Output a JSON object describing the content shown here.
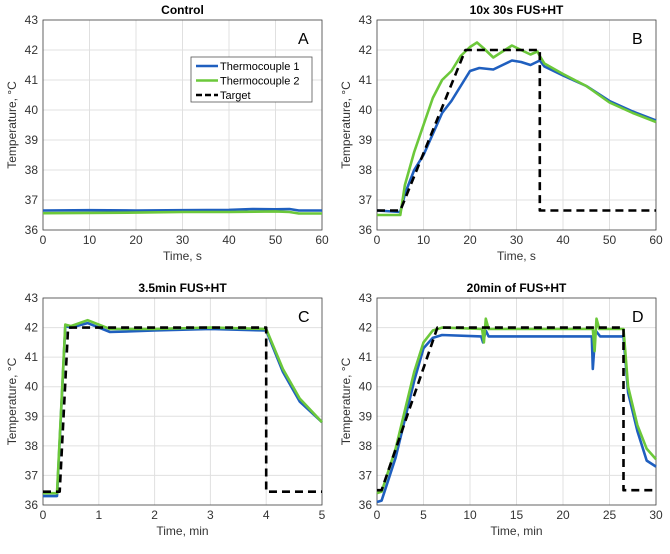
{
  "colors": {
    "tc1": "#1f5fbf",
    "tc2": "#6cc83a",
    "target": "#000000",
    "grid": "#e0e0e0"
  },
  "legend": {
    "placement": "top-right of panel A",
    "entries": [
      "Thermocouple 1",
      "Thermocouple 2",
      "Target"
    ]
  },
  "chart_data": [
    {
      "type": "line",
      "panel": "A",
      "title": "Control",
      "xlabel": "Time, s",
      "ylabel": "Temperature, °C",
      "xlim": [
        0,
        60
      ],
      "ylim": [
        36,
        43
      ],
      "xticks": [
        0,
        10,
        20,
        30,
        40,
        50,
        60
      ],
      "yticks": [
        36,
        37,
        38,
        39,
        40,
        41,
        42,
        43
      ],
      "grid": true,
      "series": [
        {
          "name": "Thermocouple 1",
          "x": [
            0,
            10,
            20,
            30,
            40,
            45,
            50,
            53,
            55,
            60
          ],
          "y": [
            36.65,
            36.66,
            36.65,
            36.66,
            36.67,
            36.7,
            36.69,
            36.7,
            36.65,
            36.65
          ]
        },
        {
          "name": "Thermocouple 2",
          "x": [
            0,
            10,
            20,
            30,
            40,
            50,
            53,
            55,
            60
          ],
          "y": [
            36.56,
            36.57,
            36.58,
            36.6,
            36.6,
            36.62,
            36.6,
            36.55,
            36.55
          ]
        }
      ]
    },
    {
      "type": "line",
      "panel": "B",
      "title": "10x 30s FUS+HT",
      "xlabel": "Time, s",
      "ylabel": "Temperature, °C",
      "xlim": [
        0,
        60
      ],
      "ylim": [
        36,
        43
      ],
      "xticks": [
        0,
        10,
        20,
        30,
        40,
        50,
        60
      ],
      "yticks": [
        36,
        37,
        38,
        39,
        40,
        41,
        42,
        43
      ],
      "grid": true,
      "series": [
        {
          "name": "Thermocouple 1",
          "x": [
            0,
            5,
            6,
            8,
            10,
            12,
            14,
            16,
            18,
            20,
            22,
            25,
            27,
            29,
            31,
            33,
            35,
            36,
            40,
            45,
            50,
            55,
            60
          ],
          "y": [
            36.65,
            36.6,
            37.2,
            38,
            38.5,
            39.2,
            39.9,
            40.3,
            40.8,
            41.3,
            41.4,
            41.35,
            41.5,
            41.65,
            41.6,
            41.5,
            41.65,
            41.45,
            41.15,
            40.8,
            40.3,
            39.95,
            39.65
          ]
        },
        {
          "name": "Thermocouple 2",
          "x": [
            0,
            5,
            6,
            8,
            10,
            12,
            14,
            16,
            18,
            20,
            21.5,
            23,
            25,
            27,
            29,
            31,
            33,
            34.5,
            35,
            36,
            40,
            45,
            50,
            55,
            60
          ],
          "y": [
            36.5,
            36.5,
            37.5,
            38.6,
            39.5,
            40.4,
            41,
            41.3,
            41.8,
            42.1,
            42.25,
            42.05,
            41.75,
            41.95,
            42.15,
            42,
            41.85,
            41.95,
            41.8,
            41.55,
            41.2,
            40.8,
            40.25,
            39.9,
            39.6
          ]
        },
        {
          "name": "Target",
          "x": [
            0,
            5,
            19,
            35,
            35,
            60
          ],
          "y": [
            36.65,
            36.65,
            42,
            42,
            36.65,
            36.65
          ]
        }
      ]
    },
    {
      "type": "line",
      "panel": "C",
      "title": "3.5min FUS+HT",
      "xlabel": "Time, min",
      "ylabel": "Temperature, °C",
      "xlim": [
        0,
        5
      ],
      "ylim": [
        36,
        43
      ],
      "xticks": [
        0,
        1,
        2,
        3,
        4,
        5
      ],
      "yticks": [
        36,
        37,
        38,
        39,
        40,
        41,
        42,
        43
      ],
      "grid": true,
      "series": [
        {
          "name": "Thermocouple 1",
          "x": [
            0,
            0.25,
            0.4,
            0.5,
            0.8,
            1.2,
            2,
            3,
            4,
            4.3,
            4.6,
            5
          ],
          "y": [
            36.3,
            36.3,
            42.05,
            42,
            42.15,
            41.85,
            41.9,
            41.95,
            41.9,
            40.5,
            39.5,
            38.8
          ]
        },
        {
          "name": "Thermocouple 2",
          "x": [
            0,
            0.25,
            0.4,
            0.5,
            0.8,
            1.2,
            2,
            3,
            4,
            4.3,
            4.6,
            5
          ],
          "y": [
            36.4,
            36.4,
            42.1,
            42.05,
            42.25,
            41.95,
            41.95,
            42,
            41.95,
            40.6,
            39.6,
            38.8
          ]
        },
        {
          "name": "Target",
          "x": [
            0,
            0.3,
            0.45,
            4,
            4,
            5
          ],
          "y": [
            36.45,
            36.45,
            42,
            42,
            36.45,
            36.45
          ]
        }
      ]
    },
    {
      "type": "line",
      "panel": "D",
      "title": "20min of FUS+HT",
      "xlabel": "Time, min",
      "ylabel": "Temperature, °C",
      "xlim": [
        0,
        30
      ],
      "ylim": [
        36,
        43
      ],
      "xticks": [
        0,
        5,
        10,
        15,
        20,
        25,
        30
      ],
      "yticks": [
        36,
        37,
        38,
        39,
        40,
        41,
        42,
        43
      ],
      "grid": true,
      "series": [
        {
          "name": "Thermocouple 1",
          "x": [
            0,
            0.5,
            2,
            4,
            5,
            6,
            7,
            11.2,
            11.4,
            11.7,
            12,
            23.1,
            23.2,
            23.5,
            24,
            26.5,
            27,
            28,
            29,
            30
          ],
          "y": [
            36.1,
            36.15,
            37.6,
            40.2,
            41.3,
            41.65,
            41.75,
            41.7,
            41.5,
            41.9,
            41.7,
            41.7,
            40.6,
            41.9,
            41.7,
            41.7,
            39.8,
            38.5,
            37.5,
            37.3
          ]
        },
        {
          "name": "Thermocouple 2",
          "x": [
            0,
            0.5,
            2,
            4,
            5,
            6,
            7,
            11.3,
            11.5,
            11.7,
            12,
            23.2,
            23.4,
            23.6,
            23.9,
            26.5,
            27,
            28,
            29,
            30
          ],
          "y": [
            36.4,
            36.45,
            37.9,
            40.5,
            41.5,
            41.9,
            42,
            41.95,
            41.5,
            42.3,
            41.95,
            41.95,
            41.2,
            42.3,
            41.95,
            41.95,
            40,
            38.7,
            37.9,
            37.55
          ]
        },
        {
          "name": "Target",
          "x": [
            0,
            0.5,
            6.5,
            26.5,
            26.5,
            30
          ],
          "y": [
            36.5,
            36.5,
            42,
            42,
            36.5,
            36.5
          ]
        }
      ]
    }
  ]
}
